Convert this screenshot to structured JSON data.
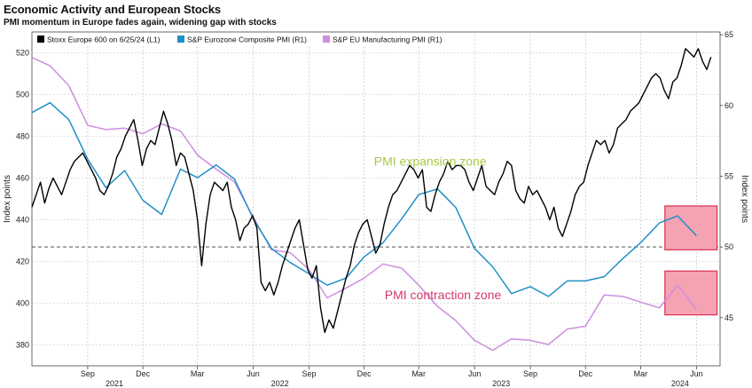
{
  "title": "Economic Activity and European Stocks",
  "subtitle": "PMI momentum in Europe fades again, widening gap with stocks",
  "colors": {
    "stoxx": "#000000",
    "composite": "#1f8fc7",
    "manufacturing": "#cc8ee0",
    "highlight_fill": "#f5a3b3",
    "highlight_stroke": "#d9304f",
    "expansion_text": "#a7c94a",
    "contraction_text": "#d63a6a",
    "grid": "#bdbdbd"
  },
  "chart_data": {
    "type": "line",
    "title": "Economic Activity and European Stocks",
    "subtitle": "PMI momentum in Europe fades again, widening gap with stocks",
    "ylabel_left": "Index points",
    "ylabel_right": "Index points",
    "ylim_left": [
      370,
      530
    ],
    "ylim_right": [
      41.6,
      65.2
    ],
    "left_ticks": [
      380,
      400,
      420,
      440,
      460,
      480,
      500,
      520
    ],
    "right_ticks": [
      45,
      50,
      55,
      60,
      65
    ],
    "x_range": [
      "2021-06-01",
      "2024-07-10"
    ],
    "x_ticks": [
      {
        "label": "Sep",
        "date": "2021-09-01"
      },
      {
        "label": "Dec",
        "date": "2021-12-01"
      },
      {
        "label": "Mar",
        "date": "2022-03-01"
      },
      {
        "label": "Jun",
        "date": "2022-06-01"
      },
      {
        "label": "Sep",
        "date": "2022-09-01"
      },
      {
        "label": "Dec",
        "date": "2022-12-01"
      },
      {
        "label": "Mar",
        "date": "2023-03-01"
      },
      {
        "label": "Jun",
        "date": "2023-06-01"
      },
      {
        "label": "Sep",
        "date": "2023-09-01"
      },
      {
        "label": "Dec",
        "date": "2023-12-01"
      },
      {
        "label": "Mar",
        "date": "2024-03-01"
      },
      {
        "label": "Jun",
        "date": "2024-06-01"
      }
    ],
    "year_labels": [
      {
        "label": "2021",
        "date": "2021-10-15"
      },
      {
        "label": "2022",
        "date": "2022-07-15"
      },
      {
        "label": "2023",
        "date": "2023-07-15"
      },
      {
        "label": "2024",
        "date": "2024-05-05"
      }
    ],
    "grid": true,
    "legend_position": "top-left",
    "reference_line": {
      "axis": "right",
      "value": 50,
      "style": "dashed"
    },
    "annotations": [
      {
        "text": "PMI expansion zone",
        "date": "2023-03-20",
        "value_left": 466
      },
      {
        "text": "PMI contraction zone",
        "date": "2023-04-10",
        "value_left": 402
      }
    ],
    "highlights": [
      {
        "date_from": "2024-04-10",
        "date_to": "2024-07-05",
        "y_from_right": 49.8,
        "y_to_right": 52.9
      },
      {
        "date_from": "2024-04-10",
        "date_to": "2024-07-05",
        "y_from_right": 45.2,
        "y_to_right": 48.3
      }
    ],
    "series": [
      {
        "name": "Stoxx Europe 600 on 6/25/24 (L1)",
        "axis": "left",
        "points": [
          [
            "2021-06-01",
            446
          ],
          [
            "2021-06-08",
            452
          ],
          [
            "2021-06-15",
            458
          ],
          [
            "2021-06-22",
            448
          ],
          [
            "2021-06-29",
            455
          ],
          [
            "2021-07-06",
            460
          ],
          [
            "2021-07-13",
            456
          ],
          [
            "2021-07-20",
            452
          ],
          [
            "2021-07-27",
            458
          ],
          [
            "2021-08-03",
            464
          ],
          [
            "2021-08-10",
            468
          ],
          [
            "2021-08-17",
            470
          ],
          [
            "2021-08-24",
            472
          ],
          [
            "2021-08-31",
            468
          ],
          [
            "2021-09-07",
            464
          ],
          [
            "2021-09-14",
            460
          ],
          [
            "2021-09-21",
            454
          ],
          [
            "2021-09-28",
            452
          ],
          [
            "2021-10-05",
            456
          ],
          [
            "2021-10-12",
            462
          ],
          [
            "2021-10-19",
            470
          ],
          [
            "2021-10-26",
            474
          ],
          [
            "2021-11-02",
            480
          ],
          [
            "2021-11-09",
            484
          ],
          [
            "2021-11-16",
            488
          ],
          [
            "2021-11-23",
            478
          ],
          [
            "2021-11-30",
            466
          ],
          [
            "2021-12-07",
            474
          ],
          [
            "2021-12-14",
            478
          ],
          [
            "2021-12-21",
            476
          ],
          [
            "2021-12-28",
            484
          ],
          [
            "2022-01-04",
            492
          ],
          [
            "2022-01-11",
            486
          ],
          [
            "2022-01-18",
            478
          ],
          [
            "2022-01-25",
            466
          ],
          [
            "2022-02-01",
            472
          ],
          [
            "2022-02-08",
            470
          ],
          [
            "2022-02-15",
            462
          ],
          [
            "2022-02-22",
            454
          ],
          [
            "2022-03-01",
            440
          ],
          [
            "2022-03-08",
            418
          ],
          [
            "2022-03-15",
            438
          ],
          [
            "2022-03-22",
            452
          ],
          [
            "2022-03-29",
            458
          ],
          [
            "2022-04-05",
            456
          ],
          [
            "2022-04-12",
            454
          ],
          [
            "2022-04-19",
            458
          ],
          [
            "2022-04-26",
            446
          ],
          [
            "2022-05-03",
            440
          ],
          [
            "2022-05-10",
            430
          ],
          [
            "2022-05-17",
            436
          ],
          [
            "2022-05-24",
            438
          ],
          [
            "2022-05-31",
            442
          ],
          [
            "2022-06-07",
            436
          ],
          [
            "2022-06-14",
            410
          ],
          [
            "2022-06-21",
            406
          ],
          [
            "2022-06-28",
            410
          ],
          [
            "2022-07-05",
            404
          ],
          [
            "2022-07-12",
            410
          ],
          [
            "2022-07-19",
            418
          ],
          [
            "2022-07-26",
            424
          ],
          [
            "2022-08-02",
            430
          ],
          [
            "2022-08-09",
            436
          ],
          [
            "2022-08-16",
            440
          ],
          [
            "2022-08-23",
            428
          ],
          [
            "2022-08-30",
            416
          ],
          [
            "2022-09-06",
            412
          ],
          [
            "2022-09-13",
            418
          ],
          [
            "2022-09-20",
            398
          ],
          [
            "2022-09-27",
            386
          ],
          [
            "2022-10-04",
            392
          ],
          [
            "2022-10-11",
            388
          ],
          [
            "2022-10-18",
            396
          ],
          [
            "2022-10-25",
            404
          ],
          [
            "2022-11-01",
            412
          ],
          [
            "2022-11-08",
            418
          ],
          [
            "2022-11-15",
            428
          ],
          [
            "2022-11-22",
            434
          ],
          [
            "2022-11-29",
            438
          ],
          [
            "2022-12-06",
            440
          ],
          [
            "2022-12-13",
            432
          ],
          [
            "2022-12-20",
            424
          ],
          [
            "2022-12-27",
            428
          ],
          [
            "2023-01-03",
            438
          ],
          [
            "2023-01-10",
            446
          ],
          [
            "2023-01-17",
            452
          ],
          [
            "2023-01-24",
            454
          ],
          [
            "2023-01-31",
            458
          ],
          [
            "2023-02-07",
            462
          ],
          [
            "2023-02-14",
            466
          ],
          [
            "2023-02-21",
            464
          ],
          [
            "2023-02-28",
            460
          ],
          [
            "2023-03-07",
            464
          ],
          [
            "2023-03-14",
            446
          ],
          [
            "2023-03-21",
            444
          ],
          [
            "2023-03-28",
            452
          ],
          [
            "2023-04-04",
            458
          ],
          [
            "2023-04-11",
            462
          ],
          [
            "2023-04-18",
            468
          ],
          [
            "2023-04-25",
            464
          ],
          [
            "2023-05-02",
            466
          ],
          [
            "2023-05-09",
            466
          ],
          [
            "2023-05-16",
            464
          ],
          [
            "2023-05-23",
            458
          ],
          [
            "2023-05-30",
            454
          ],
          [
            "2023-06-06",
            460
          ],
          [
            "2023-06-13",
            466
          ],
          [
            "2023-06-20",
            456
          ],
          [
            "2023-06-27",
            454
          ],
          [
            "2023-07-04",
            452
          ],
          [
            "2023-07-11",
            458
          ],
          [
            "2023-07-18",
            462
          ],
          [
            "2023-07-25",
            468
          ],
          [
            "2023-08-01",
            466
          ],
          [
            "2023-08-08",
            454
          ],
          [
            "2023-08-15",
            450
          ],
          [
            "2023-08-22",
            448
          ],
          [
            "2023-08-29",
            456
          ],
          [
            "2023-09-05",
            452
          ],
          [
            "2023-09-12",
            454
          ],
          [
            "2023-09-19",
            450
          ],
          [
            "2023-09-26",
            446
          ],
          [
            "2023-10-03",
            440
          ],
          [
            "2023-10-10",
            446
          ],
          [
            "2023-10-17",
            436
          ],
          [
            "2023-10-24",
            432
          ],
          [
            "2023-10-31",
            438
          ],
          [
            "2023-11-07",
            444
          ],
          [
            "2023-11-14",
            452
          ],
          [
            "2023-11-21",
            456
          ],
          [
            "2023-11-28",
            458
          ],
          [
            "2023-12-05",
            466
          ],
          [
            "2023-12-12",
            472
          ],
          [
            "2023-12-19",
            478
          ],
          [
            "2023-12-26",
            476
          ],
          [
            "2024-01-02",
            478
          ],
          [
            "2024-01-09",
            472
          ],
          [
            "2024-01-16",
            476
          ],
          [
            "2024-01-23",
            484
          ],
          [
            "2024-01-30",
            486
          ],
          [
            "2024-02-06",
            488
          ],
          [
            "2024-02-13",
            492
          ],
          [
            "2024-02-20",
            494
          ],
          [
            "2024-02-27",
            496
          ],
          [
            "2024-03-05",
            500
          ],
          [
            "2024-03-12",
            504
          ],
          [
            "2024-03-19",
            508
          ],
          [
            "2024-03-26",
            510
          ],
          [
            "2024-04-02",
            508
          ],
          [
            "2024-04-09",
            502
          ],
          [
            "2024-04-16",
            498
          ],
          [
            "2024-04-23",
            506
          ],
          [
            "2024-04-30",
            508
          ],
          [
            "2024-05-07",
            514
          ],
          [
            "2024-05-14",
            522
          ],
          [
            "2024-05-21",
            520
          ],
          [
            "2024-05-28",
            518
          ],
          [
            "2024-06-04",
            522
          ],
          [
            "2024-06-11",
            516
          ],
          [
            "2024-06-18",
            512
          ],
          [
            "2024-06-25",
            518
          ]
        ]
      },
      {
        "name": "S&P Eurozone Composite PMI (R1)",
        "axis": "right",
        "points": [
          [
            "2021-06-01",
            59.5
          ],
          [
            "2021-07-01",
            60.2
          ],
          [
            "2021-08-01",
            59.0
          ],
          [
            "2021-09-01",
            56.2
          ],
          [
            "2021-10-01",
            54.2
          ],
          [
            "2021-11-01",
            55.4
          ],
          [
            "2021-12-01",
            53.3
          ],
          [
            "2022-01-01",
            52.3
          ],
          [
            "2022-02-01",
            55.5
          ],
          [
            "2022-03-01",
            54.9
          ],
          [
            "2022-04-01",
            55.8
          ],
          [
            "2022-05-01",
            54.8
          ],
          [
            "2022-06-01",
            52.0
          ],
          [
            "2022-07-01",
            49.9
          ],
          [
            "2022-08-01",
            48.9
          ],
          [
            "2022-09-01",
            48.1
          ],
          [
            "2022-10-01",
            47.3
          ],
          [
            "2022-11-01",
            47.8
          ],
          [
            "2022-12-01",
            49.3
          ],
          [
            "2023-01-01",
            50.3
          ],
          [
            "2023-02-01",
            52.0
          ],
          [
            "2023-03-01",
            53.7
          ],
          [
            "2023-04-01",
            54.1
          ],
          [
            "2023-05-01",
            52.8
          ],
          [
            "2023-06-01",
            49.9
          ],
          [
            "2023-07-01",
            48.6
          ],
          [
            "2023-08-01",
            46.7
          ],
          [
            "2023-09-01",
            47.2
          ],
          [
            "2023-10-01",
            46.5
          ],
          [
            "2023-11-01",
            47.6
          ],
          [
            "2023-12-01",
            47.6
          ],
          [
            "2024-01-01",
            47.9
          ],
          [
            "2024-02-01",
            49.2
          ],
          [
            "2024-03-01",
            50.3
          ],
          [
            "2024-04-01",
            51.7
          ],
          [
            "2024-05-01",
            52.2
          ],
          [
            "2024-06-01",
            50.8
          ]
        ]
      },
      {
        "name": "S&P EU Manufacturing PMI (R1)",
        "axis": "right",
        "points": [
          [
            "2021-06-01",
            63.4
          ],
          [
            "2021-07-01",
            62.8
          ],
          [
            "2021-08-01",
            61.4
          ],
          [
            "2021-09-01",
            58.6
          ],
          [
            "2021-10-01",
            58.3
          ],
          [
            "2021-11-01",
            58.4
          ],
          [
            "2021-12-01",
            58.0
          ],
          [
            "2022-01-01",
            58.7
          ],
          [
            "2022-02-01",
            58.2
          ],
          [
            "2022-03-01",
            56.5
          ],
          [
            "2022-04-01",
            55.5
          ],
          [
            "2022-05-01",
            54.6
          ],
          [
            "2022-06-01",
            52.1
          ],
          [
            "2022-07-01",
            49.8
          ],
          [
            "2022-08-01",
            49.6
          ],
          [
            "2022-09-01",
            48.4
          ],
          [
            "2022-10-01",
            46.4
          ],
          [
            "2022-11-01",
            47.1
          ],
          [
            "2022-12-01",
            47.8
          ],
          [
            "2023-01-01",
            48.8
          ],
          [
            "2023-02-01",
            48.5
          ],
          [
            "2023-03-01",
            47.3
          ],
          [
            "2023-04-01",
            45.8
          ],
          [
            "2023-05-01",
            44.8
          ],
          [
            "2023-06-01",
            43.4
          ],
          [
            "2023-07-01",
            42.7
          ],
          [
            "2023-08-01",
            43.5
          ],
          [
            "2023-09-01",
            43.4
          ],
          [
            "2023-10-01",
            43.1
          ],
          [
            "2023-11-01",
            44.2
          ],
          [
            "2023-12-01",
            44.4
          ],
          [
            "2024-01-01",
            46.6
          ],
          [
            "2024-02-01",
            46.5
          ],
          [
            "2024-03-01",
            46.1
          ],
          [
            "2024-04-01",
            45.7
          ],
          [
            "2024-05-01",
            47.3
          ],
          [
            "2024-06-01",
            45.6
          ]
        ]
      }
    ]
  }
}
